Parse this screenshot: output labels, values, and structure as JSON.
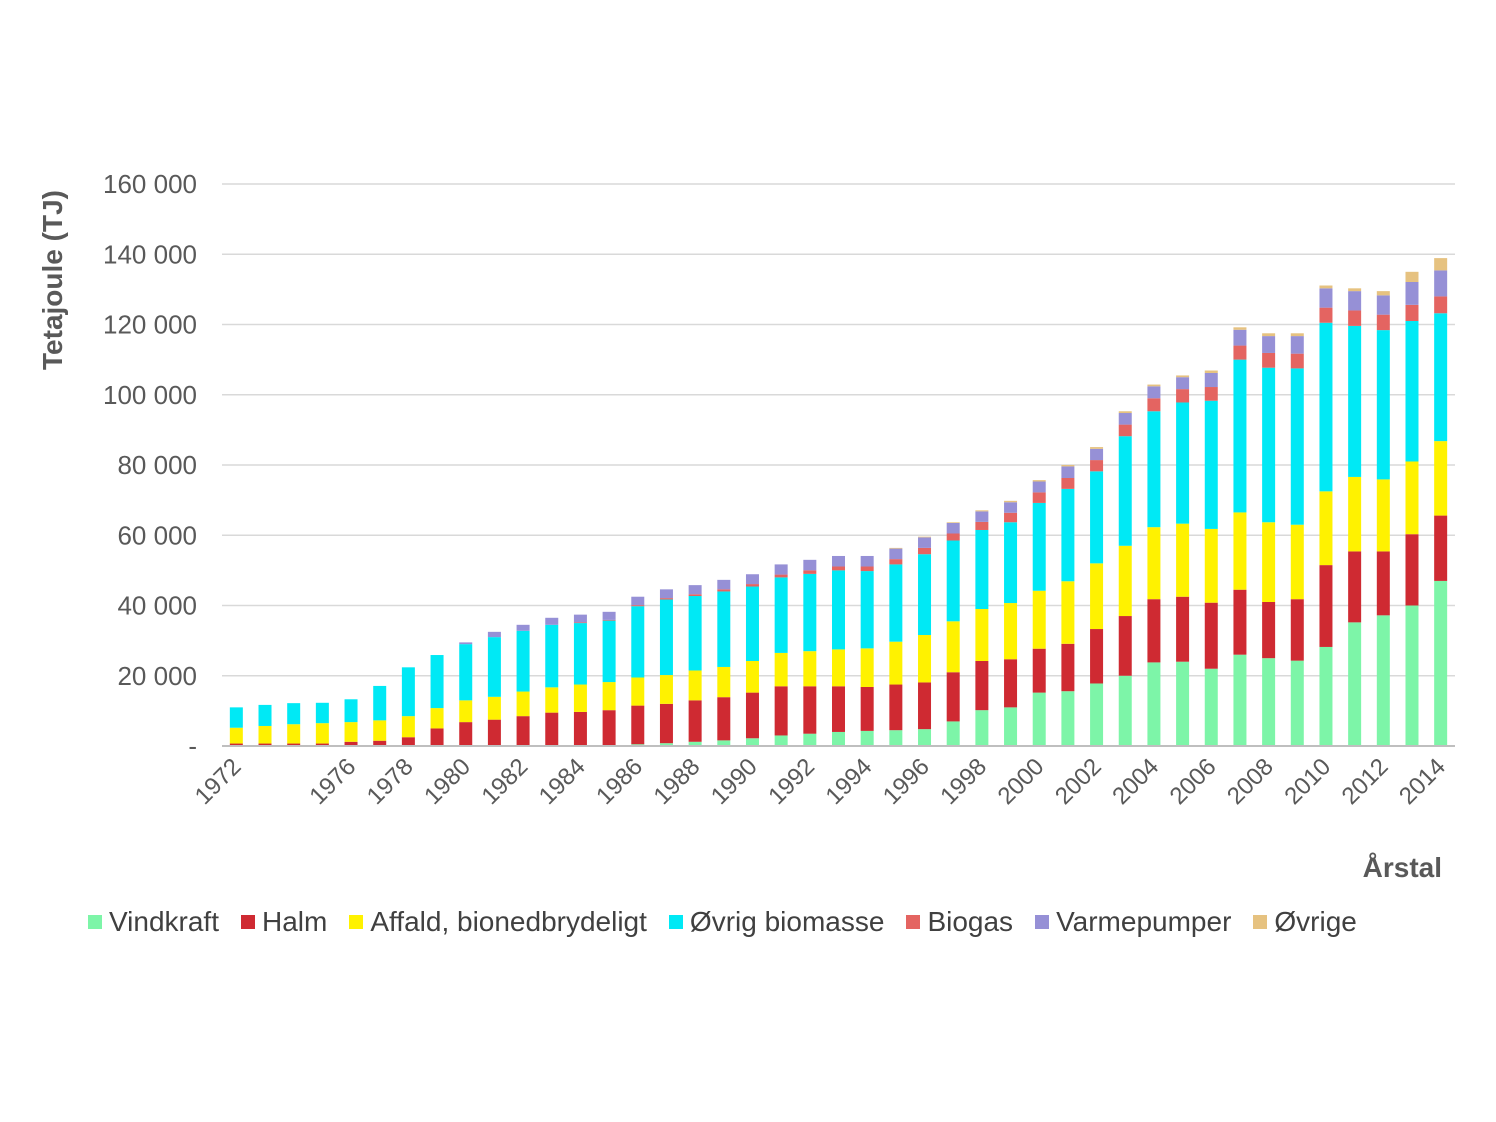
{
  "chart_data": {
    "type": "bar",
    "stacked": true,
    "ylabel": "Tetajoule (TJ)",
    "xlabel": "Årstal",
    "ylim": [
      0,
      160000
    ],
    "y_ticks": [
      "-",
      "20 000",
      "40 000",
      "60 000",
      "80 000",
      "100 000",
      "120 000",
      "140 000",
      "160 000"
    ],
    "y_tick_values": [
      0,
      20000,
      40000,
      60000,
      80000,
      100000,
      120000,
      140000,
      160000
    ],
    "x_tick_labels": [
      "1972",
      "1976",
      "1978",
      "1980",
      "1982",
      "1984",
      "1986",
      "1988",
      "1990",
      "1992",
      "1994",
      "1996",
      "1998",
      "2000",
      "2002",
      "2004",
      "2006",
      "2008",
      "2010",
      "2012",
      "2014"
    ],
    "categories": [
      "1972",
      "1973",
      "1974",
      "1975",
      "1976",
      "1977",
      "1978",
      "1979",
      "1980",
      "1981",
      "1982",
      "1983",
      "1984",
      "1985",
      "1986",
      "1987",
      "1988",
      "1989",
      "1990",
      "1991",
      "1992",
      "1993",
      "1994",
      "1995",
      "1996",
      "1997",
      "1998",
      "1999",
      "2000",
      "2001",
      "2002",
      "2003",
      "2004",
      "2005",
      "2006",
      "2007",
      "2008",
      "2009",
      "2010",
      "2011",
      "2012",
      "2013",
      "2014"
    ],
    "grid": true,
    "legend_position": "bottom",
    "series": [
      {
        "name": "Vindkraft",
        "color": "#7df5a8",
        "values": [
          0,
          0,
          0,
          0,
          0,
          0,
          0,
          0,
          0,
          0,
          0,
          0,
          0,
          0,
          500,
          800,
          1200,
          1600,
          2200,
          3000,
          3500,
          4000,
          4300,
          4500,
          4800,
          7000,
          10200,
          11000,
          15200,
          15600,
          17800,
          20000,
          23800,
          24000,
          22000,
          26000,
          25000,
          24300,
          28200,
          35200,
          37200,
          40000,
          47000
        ]
      },
      {
        "name": "Halm",
        "color": "#cf2a32",
        "values": [
          700,
          700,
          700,
          700,
          1200,
          1500,
          2500,
          5000,
          6800,
          7500,
          8500,
          9500,
          9700,
          10200,
          11000,
          11200,
          11800,
          12300,
          13000,
          14000,
          13500,
          13000,
          12500,
          13000,
          13300,
          14000,
          14000,
          13700,
          12500,
          13500,
          15500,
          17000,
          18000,
          18500,
          18800,
          18500,
          16000,
          17500,
          23300,
          20200,
          18200,
          20300,
          18600
        ]
      },
      {
        "name": "Affald, bionedbrydeligt",
        "color": "#fff200",
        "values": [
          4500,
          5000,
          5500,
          5800,
          5600,
          5800,
          6000,
          5800,
          6200,
          6500,
          7000,
          7200,
          7800,
          8000,
          8000,
          8200,
          8500,
          8600,
          9000,
          9500,
          10000,
          10500,
          11000,
          12200,
          13500,
          14500,
          14800,
          16000,
          16500,
          17800,
          18700,
          20000,
          20500,
          20800,
          21000,
          22000,
          22700,
          21200,
          21000,
          21200,
          20500,
          20700,
          21200
        ]
      },
      {
        "name": "Øvrig biomasse",
        "color": "#00e9f5",
        "values": [
          5800,
          6000,
          6000,
          5800,
          6500,
          9800,
          13900,
          15100,
          16000,
          17000,
          17300,
          17800,
          17500,
          17500,
          20300,
          21500,
          21200,
          21500,
          21200,
          21500,
          22000,
          22500,
          22000,
          22000,
          23000,
          23000,
          22500,
          23000,
          25000,
          26300,
          26200,
          31200,
          33000,
          34500,
          36500,
          43500,
          44000,
          44500,
          48000,
          43000,
          42500,
          40000,
          36400
        ]
      },
      {
        "name": "Biogas",
        "color": "#e46461",
        "values": [
          0,
          0,
          0,
          0,
          0,
          0,
          0,
          0,
          0,
          0,
          0,
          0,
          200,
          200,
          300,
          400,
          500,
          600,
          700,
          800,
          1000,
          1100,
          1300,
          1500,
          1800,
          2000,
          2300,
          2700,
          3000,
          3100,
          3200,
          3300,
          3700,
          3800,
          3900,
          4000,
          4200,
          4200,
          4300,
          4400,
          4400,
          4600,
          4800
        ]
      },
      {
        "name": "Varmepumper",
        "color": "#9690d6",
        "values": [
          0,
          0,
          0,
          0,
          0,
          0,
          0,
          0,
          500,
          1500,
          1700,
          2000,
          2200,
          2300,
          2400,
          2500,
          2600,
          2700,
          2800,
          2900,
          3000,
          3000,
          3000,
          3000,
          3000,
          3000,
          3000,
          3000,
          3100,
          3300,
          3200,
          3300,
          3400,
          3400,
          4000,
          4500,
          4800,
          5000,
          5500,
          5500,
          5500,
          6500,
          7400
        ]
      },
      {
        "name": "Øvrige",
        "color": "#e6c280",
        "values": [
          0,
          0,
          0,
          0,
          0,
          0,
          0,
          0,
          0,
          0,
          0,
          0,
          0,
          0,
          0,
          0,
          0,
          0,
          0,
          0,
          0,
          0,
          0,
          200,
          200,
          200,
          300,
          400,
          400,
          400,
          500,
          500,
          500,
          500,
          700,
          700,
          800,
          800,
          800,
          800,
          1200,
          2900,
          3500
        ]
      }
    ]
  }
}
